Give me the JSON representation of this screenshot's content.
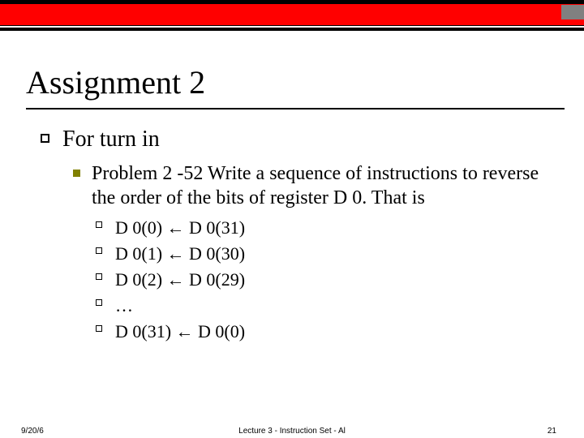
{
  "colors": {
    "header_band": "#ff0000",
    "header_rule": "#000000",
    "notch": "#808080",
    "lvl2_bullet": "#808000",
    "background": "#ffffff",
    "text": "#000000"
  },
  "typography": {
    "title_fontsize": 40,
    "lvl1_fontsize": 28,
    "lvl2_fontsize": 24,
    "lvl3_fontsize": 20,
    "footer_fontsize": 10,
    "serif_family": "Times New Roman",
    "sans_family": "Arial"
  },
  "title": "Assignment 2",
  "lvl1": {
    "text": "For turn in"
  },
  "lvl2": {
    "text": "Problem 2 -52   Write a sequence of instructions to reverse the order of the bits of register D 0.  That is"
  },
  "lvl3_items": [
    "D 0(0) ← D 0(31)",
    "D 0(1) ← D 0(30)",
    "D 0(2) ← D 0(29)",
    "…",
    "D 0(31) ← D 0(0)"
  ],
  "footer": {
    "date": "9/20/6",
    "center": "Lecture 3 - Instruction Set - Al",
    "page": "21"
  }
}
